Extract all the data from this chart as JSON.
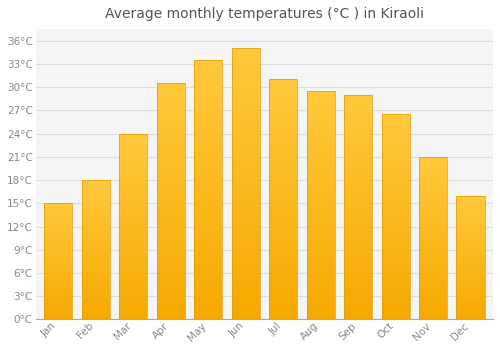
{
  "title": "Average monthly temperatures (°C ) in Kiraoli",
  "months": [
    "Jan",
    "Feb",
    "Mar",
    "Apr",
    "May",
    "Jun",
    "Jul",
    "Aug",
    "Sep",
    "Oct",
    "Nov",
    "Dec"
  ],
  "temperatures": [
    15,
    18,
    24,
    30.5,
    33.5,
    35,
    31,
    29.5,
    29,
    26.5,
    21,
    16
  ],
  "bar_color_top": "#FFC93C",
  "bar_color_bottom": "#F5A800",
  "bar_edge_color": "#E59A00",
  "background_color": "#FFFFFF",
  "plot_background_color": "#F5F5F5",
  "grid_color": "#DDDDDD",
  "yticks": [
    0,
    3,
    6,
    9,
    12,
    15,
    18,
    21,
    24,
    27,
    30,
    33,
    36
  ],
  "ylim": [
    0,
    37.5
  ],
  "title_fontsize": 10,
  "tick_fontsize": 7.5,
  "tick_color": "#888888",
  "title_color": "#555555",
  "bar_width": 0.75
}
